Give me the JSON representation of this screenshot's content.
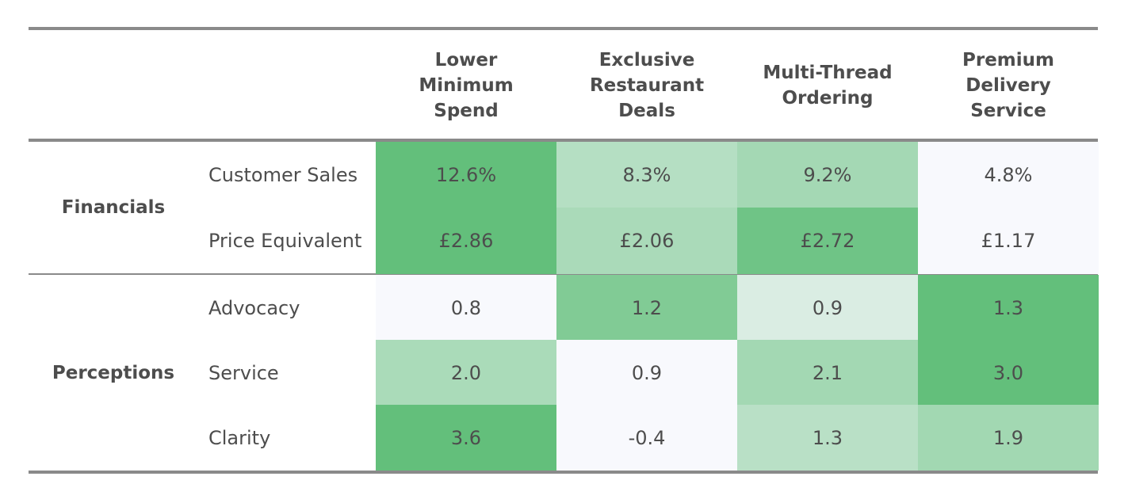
{
  "chart_data": {
    "type": "heatmap",
    "columns": [
      "Lower Minimum Spend",
      "Exclusive Restaurant Deals",
      "Multi-Thread Ordering",
      "Premium Delivery Service"
    ],
    "column_lines": [
      [
        "Lower",
        "Minimum",
        "Spend"
      ],
      [
        "Exclusive",
        "Restaurant",
        "Deals"
      ],
      [
        "Multi-Thread",
        "Ordering"
      ],
      [
        "Premium",
        "Delivery",
        "Service"
      ]
    ],
    "groups": [
      {
        "name": "Financials",
        "rows": [
          {
            "label": "Customer Sales",
            "cells": [
              "12.6%",
              "8.3%",
              "9.2%",
              "4.8%"
            ],
            "values": [
              12.6,
              8.3,
              9.2,
              4.8
            ]
          },
          {
            "label": "Price Equivalent",
            "cells": [
              "£2.86",
              "£2.06",
              "£2.72",
              "£1.17"
            ],
            "values": [
              2.86,
              2.06,
              2.72,
              1.17
            ]
          }
        ]
      },
      {
        "name": "Perceptions",
        "rows": [
          {
            "label": "Advocacy",
            "cells": [
              "0.8",
              "1.2",
              "0.9",
              "1.3"
            ],
            "values": [
              0.8,
              1.2,
              0.9,
              1.3
            ]
          },
          {
            "label": "Service",
            "cells": [
              "2.0",
              "0.9",
              "2.1",
              "3.0"
            ],
            "values": [
              2.0,
              0.9,
              2.1,
              3.0
            ]
          },
          {
            "label": "Clarity",
            "cells": [
              "3.6",
              "-0.4",
              "1.3",
              "1.9"
            ],
            "values": [
              3.6,
              -0.4,
              1.3,
              1.9
            ]
          }
        ]
      }
    ],
    "colors": {
      "strong": "#63bf7b",
      "light": "#f8f9fd",
      "rule": "#8a8a8a",
      "text": "#4d4d4d"
    }
  }
}
